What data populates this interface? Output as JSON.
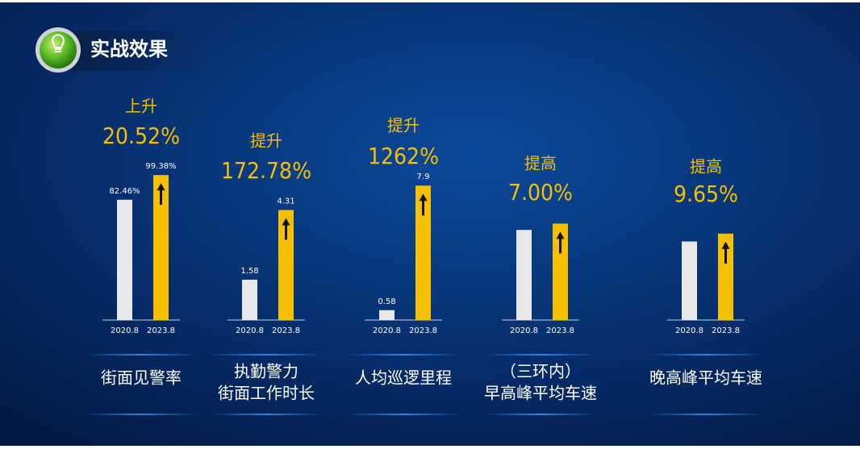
{
  "header": {
    "title": "实战效果"
  },
  "chart_data": [
    {
      "type": "bar",
      "categories": [
        "2020.8",
        "2023.8"
      ],
      "values": [
        82.46,
        99.38
      ],
      "value_labels": [
        "82.46%",
        "99.38%"
      ],
      "colors": [
        "#e8e8ea",
        "#f5c000"
      ],
      "ylim": [
        0,
        105
      ],
      "annotation": "上升",
      "change": "20.52%",
      "label": [
        "街面见警率"
      ]
    },
    {
      "type": "bar",
      "categories": [
        "2020.8",
        "2023.8"
      ],
      "values": [
        1.58,
        4.31
      ],
      "colors": [
        "#e8e8ea",
        "#f5c000"
      ],
      "ylim": [
        0,
        6
      ],
      "annotation": "提升",
      "change": "172.78%",
      "label": [
        "执勤警力",
        "街面工作时长"
      ]
    },
    {
      "type": "bar",
      "categories": [
        "2020.8",
        "2023.8"
      ],
      "values": [
        0.58,
        7.9
      ],
      "colors": [
        "#e8e8ea",
        "#f5c000"
      ],
      "ylim": [
        0,
        9
      ],
      "annotation": "提升",
      "change": "1262%",
      "label": [
        "人均巡逻里程"
      ]
    },
    {
      "type": "bar",
      "categories": [
        "2020.8",
        "2023.8"
      ],
      "values": [
        100,
        107
      ],
      "colors": [
        "#e8e8ea",
        "#f5c000"
      ],
      "ylim": [
        0,
        170
      ],
      "annotation": "提高",
      "change": "7.00%",
      "label": [
        "（三环内）",
        "早高峰平均车速"
      ]
    },
    {
      "type": "bar",
      "categories": [
        "2020.8",
        "2023.8"
      ],
      "values": [
        100,
        110
      ],
      "colors": [
        "#e8e8ea",
        "#f5c000"
      ],
      "ylim": [
        0,
        195
      ],
      "annotation": "提高",
      "change": "9.65%",
      "label": [
        "晚高峰平均车速"
      ]
    }
  ]
}
